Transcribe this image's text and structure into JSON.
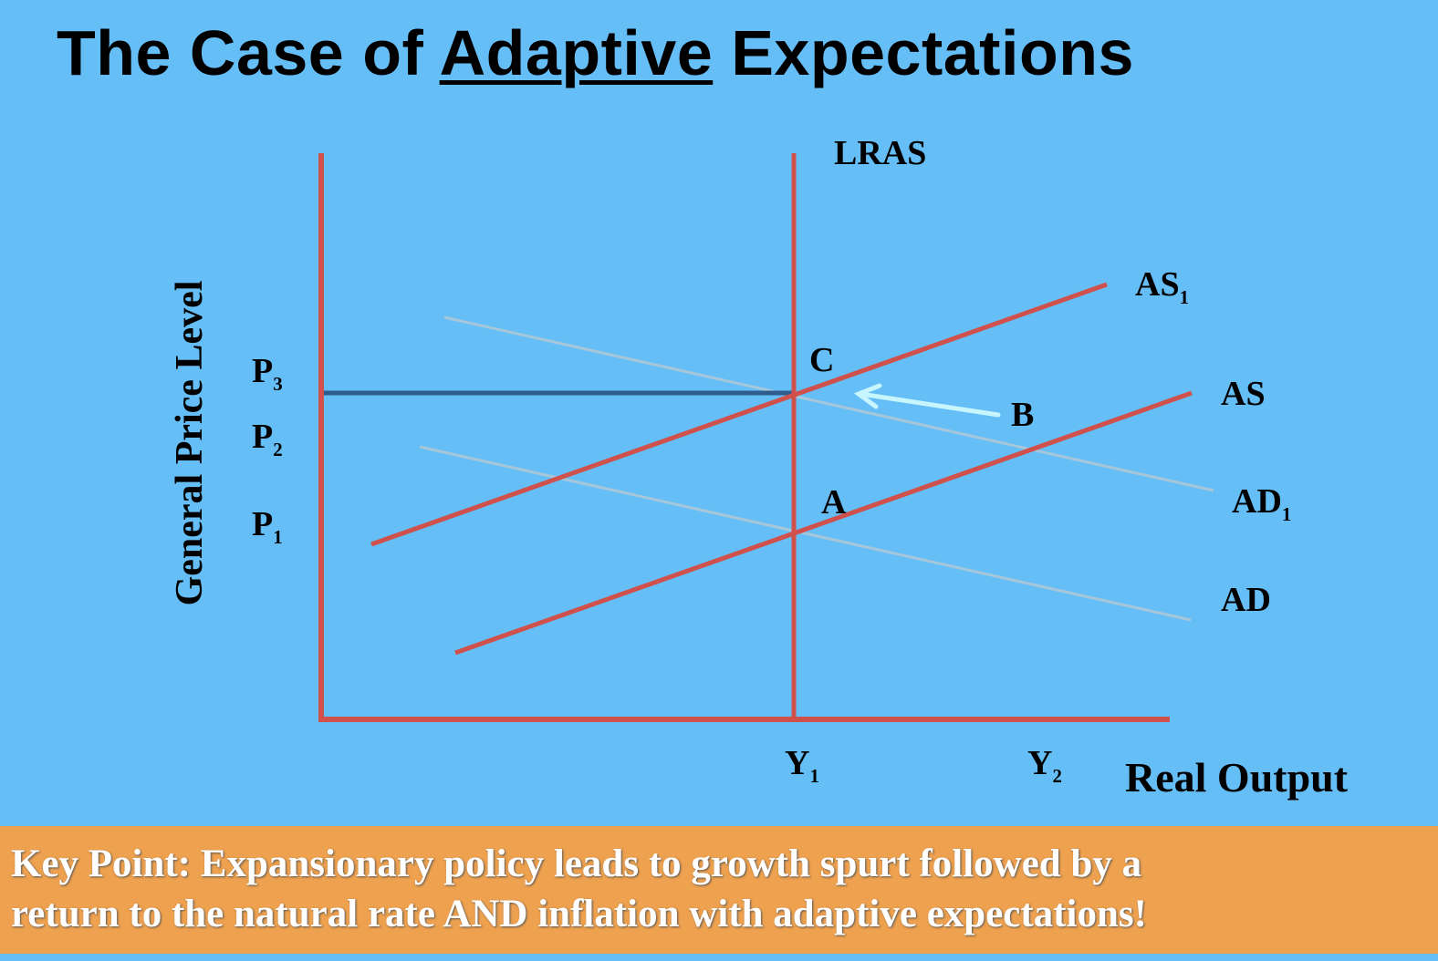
{
  "title": {
    "prefix": "The Case of",
    "emphasis": "Adaptive",
    "suffix": "Expectations"
  },
  "axes": {
    "y_label": "General Price Level",
    "x_label": "Real Output"
  },
  "price_levels": [
    {
      "letter": "P",
      "sub": "3"
    },
    {
      "letter": "P",
      "sub": "2"
    },
    {
      "letter": "P",
      "sub": "1"
    }
  ],
  "output_levels": [
    {
      "letter": "Y",
      "sub": "1"
    },
    {
      "letter": "Y",
      "sub": "2"
    }
  ],
  "curves": {
    "lras": "LRAS",
    "as1": {
      "letter": "AS",
      "sub": "1"
    },
    "as": "AS",
    "ad1": {
      "letter": "AD",
      "sub": "1"
    },
    "ad": "AD"
  },
  "points": {
    "a": "A",
    "b": "B",
    "c": "C"
  },
  "colors": {
    "background": "#66BEF7",
    "supply_curves": "#D0504B",
    "demand_curves": "#A6C7D9",
    "price_guide": "#2E5C8C",
    "arrow": "#C8F6FF",
    "banner": "#EEA14E"
  },
  "key_point": {
    "line1": "Key Point: Expansionary policy leads to growth spurt followed by a",
    "line2": "return to the natural rate AND inflation with adaptive expectations!"
  }
}
